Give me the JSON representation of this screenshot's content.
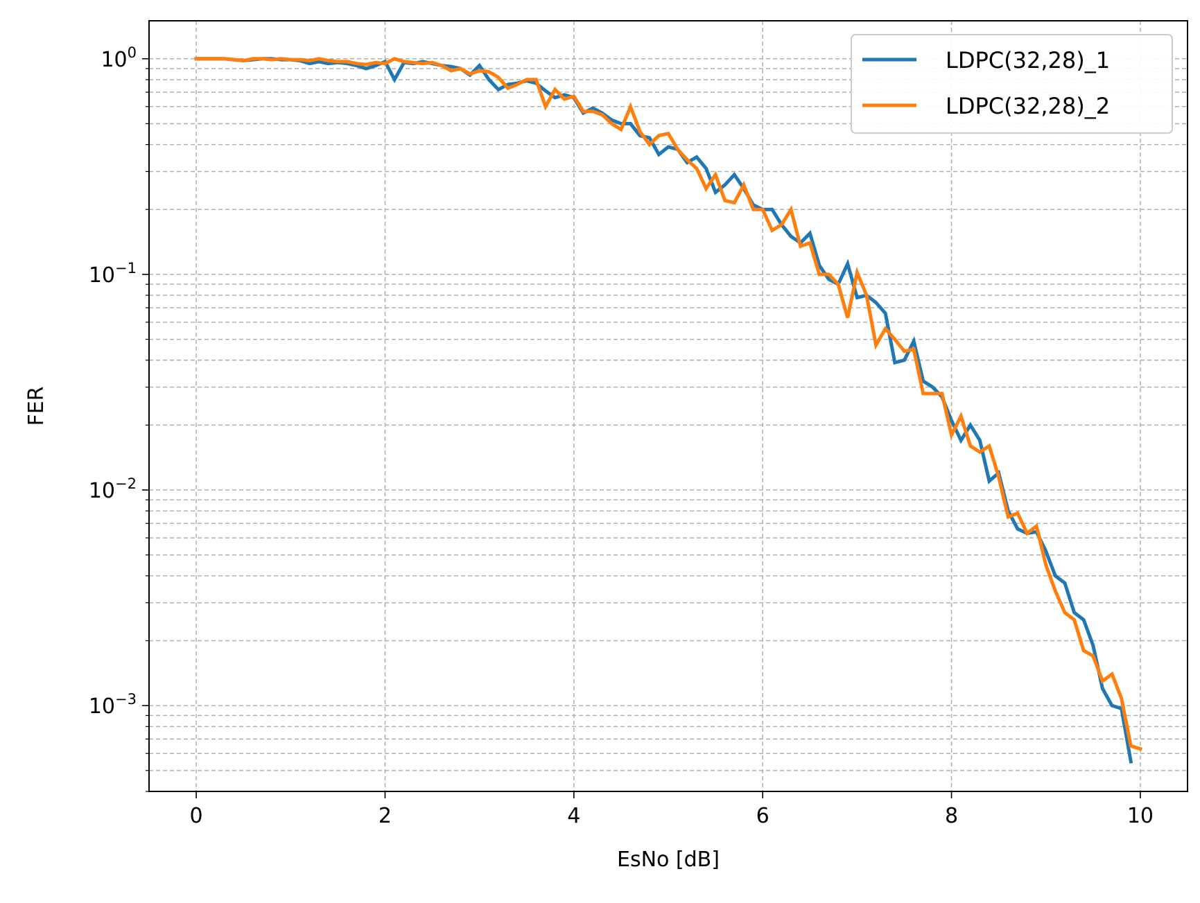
{
  "chart_data": {
    "type": "line",
    "xlabel": "EsNo [dB]",
    "ylabel": "FER",
    "xlim": [
      -0.5,
      10.5
    ],
    "ylim": [
      0.0004,
      1.5
    ],
    "yscale": "log",
    "grid": true,
    "legend_position": "top-right",
    "x_ticks": [
      0,
      2,
      4,
      6,
      8,
      10
    ],
    "x_tick_labels": [
      "0",
      "2",
      "4",
      "6",
      "8",
      "10"
    ],
    "y_ticks": [
      1,
      0.1,
      0.01,
      0.001
    ],
    "y_tick_labels": [
      {
        "base": "10",
        "exp": "0"
      },
      {
        "base": "10",
        "exp": "−1"
      },
      {
        "base": "10",
        "exp": "−2"
      },
      {
        "base": "10",
        "exp": "−3"
      }
    ],
    "x": [
      0,
      0.1,
      0.2,
      0.3,
      0.4,
      0.5,
      0.6,
      0.7,
      0.8,
      0.9,
      1.0,
      1.1,
      1.2,
      1.3,
      1.4,
      1.5,
      1.6,
      1.7,
      1.8,
      1.9,
      2.0,
      2.1,
      2.2,
      2.3,
      2.4,
      2.5,
      2.6,
      2.7,
      2.8,
      2.9,
      3.0,
      3.1,
      3.2,
      3.3,
      3.4,
      3.5,
      3.6,
      3.7,
      3.8,
      3.9,
      4.0,
      4.1,
      4.2,
      4.3,
      4.4,
      4.5,
      4.6,
      4.7,
      4.8,
      4.9,
      5.0,
      5.1,
      5.2,
      5.3,
      5.4,
      5.5,
      5.6,
      5.7,
      5.8,
      5.9,
      6.0,
      6.1,
      6.2,
      6.3,
      6.4,
      6.5,
      6.6,
      6.7,
      6.8,
      6.9,
      7.0,
      7.1,
      7.2,
      7.3,
      7.4,
      7.5,
      7.6,
      7.7,
      7.8,
      7.9,
      8.0,
      8.1,
      8.2,
      8.3,
      8.4,
      8.5,
      8.6,
      8.7,
      8.8,
      8.9,
      9.0,
      9.1,
      9.2,
      9.3,
      9.4,
      9.5,
      9.6,
      9.7,
      9.8,
      9.9,
      10.0
    ],
    "series": [
      {
        "name": "LDPC(32,28)_1",
        "color": "#1f77b4",
        "values": [
          1.0,
          1.0,
          1.0,
          1.0,
          0.99,
          0.98,
          0.99,
          1.0,
          1.0,
          0.99,
          0.99,
          0.98,
          0.95,
          0.97,
          0.95,
          0.96,
          0.95,
          0.93,
          0.9,
          0.93,
          0.97,
          0.8,
          0.96,
          0.95,
          0.97,
          0.95,
          0.93,
          0.92,
          0.9,
          0.84,
          0.93,
          0.8,
          0.72,
          0.76,
          0.77,
          0.79,
          0.77,
          0.71,
          0.66,
          0.68,
          0.66,
          0.56,
          0.59,
          0.56,
          0.52,
          0.5,
          0.5,
          0.44,
          0.43,
          0.36,
          0.39,
          0.38,
          0.33,
          0.35,
          0.31,
          0.24,
          0.26,
          0.29,
          0.25,
          0.21,
          0.2,
          0.2,
          0.17,
          0.15,
          0.14,
          0.155,
          0.11,
          0.095,
          0.09,
          0.112,
          0.078,
          0.08,
          0.074,
          0.066,
          0.039,
          0.04,
          0.049,
          0.032,
          0.03,
          0.027,
          0.021,
          0.017,
          0.02,
          0.017,
          0.011,
          0.012,
          0.008,
          0.0066,
          0.0063,
          0.0064,
          0.0052,
          0.004,
          0.0037,
          0.0027,
          0.0025,
          0.0019,
          0.0012,
          0.001,
          0.00097,
          0.00055,
          null
        ]
      },
      {
        "name": "LDPC(32,28)_2",
        "color": "#ff7f0e",
        "values": [
          1.0,
          1.0,
          1.0,
          1.0,
          0.99,
          0.98,
          1.0,
          1.0,
          0.99,
          1.0,
          0.99,
          0.99,
          0.98,
          1.0,
          0.98,
          0.97,
          0.97,
          0.95,
          0.94,
          0.96,
          0.95,
          1.0,
          0.97,
          0.96,
          0.95,
          0.96,
          0.93,
          0.88,
          0.9,
          0.85,
          0.88,
          0.87,
          0.82,
          0.73,
          0.76,
          0.8,
          0.8,
          0.6,
          0.72,
          0.65,
          0.67,
          0.57,
          0.57,
          0.55,
          0.5,
          0.47,
          0.6,
          0.46,
          0.4,
          0.44,
          0.45,
          0.38,
          0.34,
          0.31,
          0.25,
          0.29,
          0.22,
          0.215,
          0.26,
          0.2,
          0.2,
          0.16,
          0.17,
          0.2,
          0.135,
          0.14,
          0.1,
          0.1,
          0.09,
          0.063,
          0.102,
          0.08,
          0.047,
          0.056,
          0.05,
          0.044,
          0.045,
          0.028,
          0.028,
          0.028,
          0.018,
          0.022,
          0.016,
          0.015,
          0.016,
          0.0115,
          0.0075,
          0.0078,
          0.0063,
          0.0068,
          0.0045,
          0.0034,
          0.0027,
          0.0025,
          0.0018,
          0.0017,
          0.0013,
          0.0014,
          0.00108,
          0.00065,
          0.00063
        ]
      }
    ]
  }
}
